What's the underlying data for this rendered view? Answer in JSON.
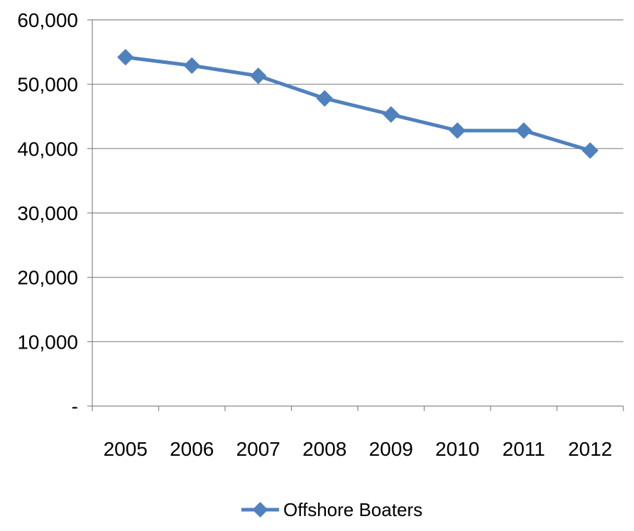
{
  "chart_data": {
    "type": "line",
    "title": "",
    "xlabel": "",
    "ylabel": "",
    "categories": [
      "2005",
      "2006",
      "2007",
      "2008",
      "2009",
      "2010",
      "2011",
      "2012"
    ],
    "series": [
      {
        "name": "Offshore Boaters",
        "values": [
          54200,
          52900,
          51300,
          47800,
          45300,
          42800,
          42800,
          39700
        ],
        "color": "#4F81BD"
      }
    ],
    "ylim": [
      0,
      60000
    ],
    "yticks": [
      0,
      10000,
      20000,
      30000,
      40000,
      50000,
      60000
    ],
    "ytick_labels": [
      "-",
      "10,000",
      "20,000",
      "30,000",
      "40,000",
      "50,000",
      "60,000"
    ],
    "grid": "horizontal",
    "legend_position": "bottom",
    "marker": "diamond"
  }
}
